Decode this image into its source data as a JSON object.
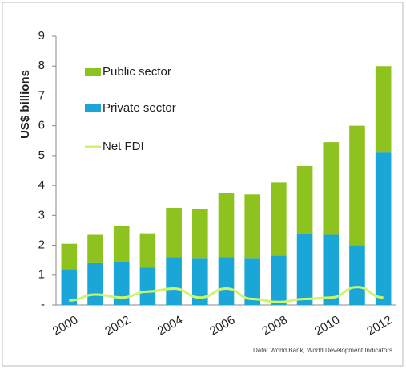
{
  "chart_data": {
    "type": "bar",
    "stacked": true,
    "y_label": "US$ billions",
    "source": "Data: World Bank, World Development Indicators",
    "categories": [
      "2000",
      null,
      "2002",
      null,
      "2004",
      null,
      "2006",
      null,
      "2008",
      null,
      "2010",
      null,
      "2012"
    ],
    "series": [
      {
        "name": "Private sector",
        "color": "#1aa7d8",
        "values": [
          1.2,
          1.4,
          1.45,
          1.25,
          1.6,
          1.55,
          1.6,
          1.55,
          1.65,
          2.4,
          2.35,
          2.0,
          5.1
        ]
      },
      {
        "name": "Public sector",
        "color": "#8dc21f",
        "values": [
          0.85,
          0.95,
          1.2,
          1.15,
          1.65,
          1.65,
          2.15,
          2.15,
          2.45,
          2.25,
          3.1,
          4.0,
          2.9
        ]
      },
      {
        "name": "Net FDI",
        "color": "#cdf56b",
        "type": "line",
        "values": [
          0.15,
          0.35,
          0.25,
          0.45,
          0.55,
          0.25,
          0.55,
          0.2,
          0.1,
          0.2,
          0.25,
          0.6,
          0.25
        ]
      }
    ],
    "ylim": [
      0,
      9
    ],
    "yticks": [
      {
        "value": 0,
        "label": "-"
      },
      1,
      2,
      3,
      4,
      5,
      6,
      7,
      8,
      9
    ]
  }
}
